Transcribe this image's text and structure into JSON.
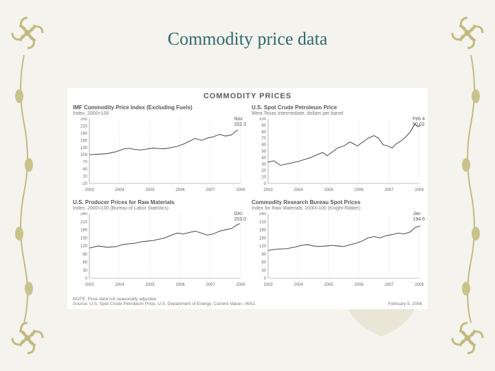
{
  "page": {
    "title": "Commodity price data",
    "title_color": "#2d6a6f",
    "background": "#f5f3ed",
    "ornament_color": "#c1b97f"
  },
  "panel": {
    "heading": "COMMODITY PRICES",
    "heading_color": "#5a5a5a",
    "background": "#ffffff",
    "footer_note": "NOTE: Price data not seasonally adjusted.",
    "footer_source": "Source: U.S. Spot Crude Petroleum Price, U.S. Department of Energy; Current Value—WSJ.",
    "footer_date": "February 5, 2008"
  },
  "charts": {
    "tl": {
      "title": "IMF Commodity Price Index (Excluding Fuels)",
      "subtitle": "Index, 2000=100",
      "callout_label": "Nov",
      "callout_value": "202.3",
      "xlim": [
        2003,
        2008
      ],
      "ylim": [
        -20,
        250
      ],
      "ytick_step": 30,
      "xticks": [
        2003,
        2004,
        2005,
        2006,
        2007,
        2008
      ],
      "series_color": "#333333",
      "grid_color": "#bbbbbb",
      "values": [
        [
          2003.0,
          100
        ],
        [
          2003.3,
          102
        ],
        [
          2003.6,
          105
        ],
        [
          2003.9,
          113
        ],
        [
          2004.1,
          123
        ],
        [
          2004.3,
          127
        ],
        [
          2004.5,
          122
        ],
        [
          2004.7,
          120
        ],
        [
          2004.9,
          124
        ],
        [
          2005.1,
          128
        ],
        [
          2005.3,
          126
        ],
        [
          2005.5,
          125
        ],
        [
          2005.7,
          130
        ],
        [
          2005.9,
          135
        ],
        [
          2006.1,
          144
        ],
        [
          2006.3,
          156
        ],
        [
          2006.5,
          168
        ],
        [
          2006.7,
          160
        ],
        [
          2006.9,
          170
        ],
        [
          2007.1,
          175
        ],
        [
          2007.3,
          185
        ],
        [
          2007.5,
          178
        ],
        [
          2007.7,
          183
        ],
        [
          2007.85,
          200
        ],
        [
          2007.92,
          202.3
        ]
      ]
    },
    "tr": {
      "title": "U.S. Spot Crude Petroleum Price",
      "subtitle": "West Texas Intermediate, dollars per barrel",
      "callout_label": "Feb 4",
      "callout_value": "90.02",
      "xlim": [
        2003,
        2008
      ],
      "ylim": [
        0,
        100
      ],
      "ytick_step": 10,
      "xticks": [
        2003,
        2004,
        2005,
        2006,
        2007,
        2008
      ],
      "series_color": "#333333",
      "grid_color": "#bbbbbb",
      "values": [
        [
          2003.0,
          33
        ],
        [
          2003.2,
          35
        ],
        [
          2003.4,
          28
        ],
        [
          2003.6,
          30
        ],
        [
          2003.8,
          32
        ],
        [
          2004.0,
          34
        ],
        [
          2004.2,
          37
        ],
        [
          2004.4,
          40
        ],
        [
          2004.6,
          44
        ],
        [
          2004.8,
          48
        ],
        [
          2004.95,
          43
        ],
        [
          2005.1,
          48
        ],
        [
          2005.3,
          55
        ],
        [
          2005.5,
          58
        ],
        [
          2005.7,
          64
        ],
        [
          2005.8,
          62
        ],
        [
          2005.95,
          58
        ],
        [
          2006.1,
          63
        ],
        [
          2006.3,
          70
        ],
        [
          2006.5,
          74
        ],
        [
          2006.65,
          70
        ],
        [
          2006.8,
          60
        ],
        [
          2006.95,
          58
        ],
        [
          2007.1,
          55
        ],
        [
          2007.25,
          62
        ],
        [
          2007.4,
          66
        ],
        [
          2007.55,
          72
        ],
        [
          2007.7,
          80
        ],
        [
          2007.85,
          92
        ],
        [
          2007.95,
          88
        ],
        [
          2008.05,
          90.02
        ]
      ]
    },
    "bl": {
      "title": "U.S. Producer Prices for Raw Materials",
      "subtitle": "Index, 2000=100 (Bureau of Labor Statistics)",
      "callout_label": "Dec",
      "callout_value": "203.0",
      "xlim": [
        2003,
        2008
      ],
      "ylim": [
        0,
        240
      ],
      "ytick_step": 30,
      "xticks": [
        2003,
        2004,
        2005,
        2006,
        2007,
        2008
      ],
      "series_color": "#333333",
      "grid_color": "#bbbbbb",
      "values": [
        [
          2003.0,
          112
        ],
        [
          2003.3,
          120
        ],
        [
          2003.6,
          115
        ],
        [
          2003.9,
          118
        ],
        [
          2004.1,
          125
        ],
        [
          2004.3,
          128
        ],
        [
          2004.5,
          130
        ],
        [
          2004.7,
          135
        ],
        [
          2004.9,
          138
        ],
        [
          2005.1,
          140
        ],
        [
          2005.3,
          145
        ],
        [
          2005.5,
          150
        ],
        [
          2005.7,
          160
        ],
        [
          2005.9,
          168
        ],
        [
          2006.1,
          165
        ],
        [
          2006.3,
          170
        ],
        [
          2006.5,
          175
        ],
        [
          2006.7,
          168
        ],
        [
          2006.9,
          160
        ],
        [
          2007.1,
          165
        ],
        [
          2007.3,
          175
        ],
        [
          2007.5,
          180
        ],
        [
          2007.7,
          185
        ],
        [
          2007.9,
          200
        ],
        [
          2007.98,
          203
        ]
      ]
    },
    "br": {
      "title": "Commodity Research Bureau Spot Prices",
      "subtitle": "Index for Raw Materials, 2000=100 (Knight-Ridder)",
      "callout_label": "Jan",
      "callout_value": "194.6",
      "xlim": [
        2003,
        2008
      ],
      "ylim": [
        0,
        240
      ],
      "ytick_step": 30,
      "xticks": [
        2003,
        2004,
        2005,
        2006,
        2007,
        2008
      ],
      "series_color": "#333333",
      "grid_color": "#bbbbbb",
      "values": [
        [
          2003.0,
          104
        ],
        [
          2003.3,
          108
        ],
        [
          2003.6,
          110
        ],
        [
          2003.9,
          116
        ],
        [
          2004.1,
          122
        ],
        [
          2004.3,
          125
        ],
        [
          2004.5,
          120
        ],
        [
          2004.7,
          118
        ],
        [
          2004.9,
          120
        ],
        [
          2005.1,
          122
        ],
        [
          2005.3,
          120
        ],
        [
          2005.5,
          118
        ],
        [
          2005.7,
          124
        ],
        [
          2005.9,
          130
        ],
        [
          2006.1,
          138
        ],
        [
          2006.3,
          150
        ],
        [
          2006.5,
          155
        ],
        [
          2006.7,
          150
        ],
        [
          2006.9,
          158
        ],
        [
          2007.1,
          162
        ],
        [
          2007.3,
          168
        ],
        [
          2007.5,
          165
        ],
        [
          2007.7,
          172
        ],
        [
          2007.85,
          188
        ],
        [
          2008.02,
          194.6
        ]
      ]
    }
  }
}
